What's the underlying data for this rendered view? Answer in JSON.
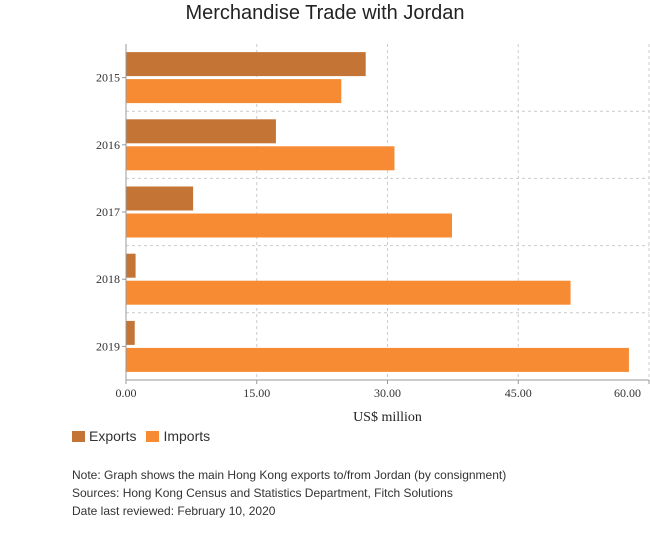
{
  "chart_data": {
    "type": "bar",
    "orientation": "horizontal",
    "title": "Merchandise Trade with Jordan",
    "xlabel": "US$ million",
    "ylabel": "",
    "categories": [
      "2015",
      "2016",
      "2017",
      "2018",
      "2019"
    ],
    "series": [
      {
        "name": "Exports",
        "color": "#c47535",
        "values": [
          27.5,
          17.2,
          7.7,
          1.1,
          1.0
        ]
      },
      {
        "name": "Imports",
        "color": "#f68b33",
        "values": [
          24.7,
          30.8,
          37.4,
          51.0,
          57.7
        ]
      }
    ],
    "xlim": [
      0,
      60
    ],
    "xticks": [
      "0.00",
      "15.00",
      "30.00",
      "45.00",
      "60.00"
    ],
    "grid": true,
    "legend_position": "bottom-left"
  },
  "notes": {
    "note": "Note: Graph shows the main Hong Kong exports to/from Jordan (by consignment)",
    "sources": "Sources: Hong Kong Census and Statistics Department, Fitch Solutions",
    "reviewed": "Date last reviewed: February 10, 2020"
  }
}
